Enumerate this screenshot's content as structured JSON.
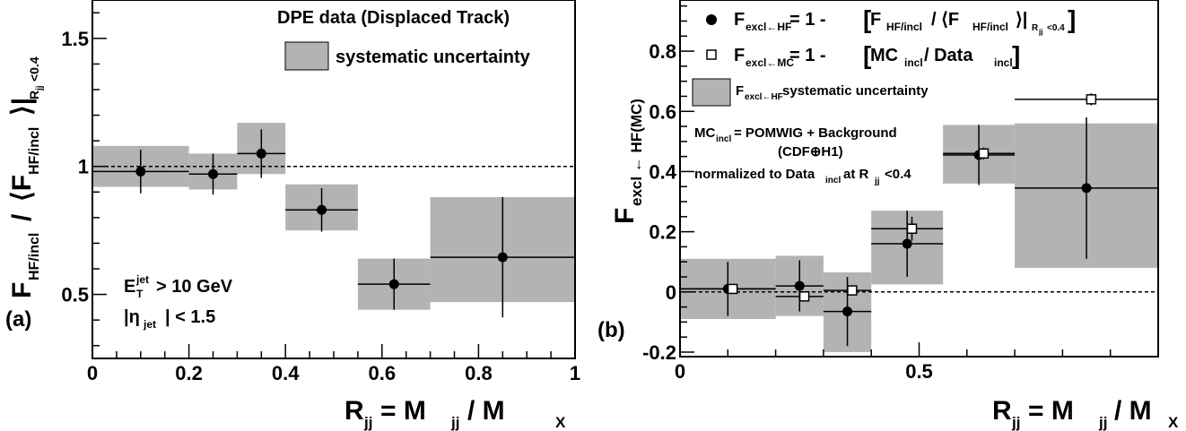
{
  "chart_data": [
    {
      "type": "scatter",
      "panel_label": "(a)",
      "x_bins": [
        [
          0,
          0.2
        ],
        [
          0.2,
          0.3
        ],
        [
          0.3,
          0.4
        ],
        [
          0.4,
          0.55
        ],
        [
          0.55,
          0.7
        ],
        [
          0.7,
          1.0
        ]
      ],
      "x": [
        0.1,
        0.25,
        0.35,
        0.475,
        0.625,
        0.85
      ],
      "y": [
        0.98,
        0.97,
        1.05,
        0.83,
        0.54,
        0.645
      ],
      "yerr_stat": [
        0.085,
        0.08,
        0.095,
        0.085,
        0.1,
        0.235
      ],
      "syst_band": [
        [
          0.92,
          1.08
        ],
        [
          0.91,
          1.05
        ],
        [
          0.97,
          1.17
        ],
        [
          0.75,
          0.93
        ],
        [
          0.44,
          0.64
        ],
        [
          0.47,
          0.88
        ]
      ],
      "xlim": [
        0,
        1
      ],
      "ylim": [
        0.25,
        1.65
      ],
      "reference_line_y": 1.0,
      "xticks": [
        "0",
        "0.2",
        "0.4",
        "0.6",
        "0.8",
        "1"
      ],
      "yticks": [
        "0.5",
        "1",
        "1.5"
      ],
      "xlabel": {
        "R": "R",
        "jj1": "jj",
        "eq": " = M",
        "jj2": "jj",
        "over": " / M",
        "X": "X"
      },
      "ylabel": {
        "F": "F",
        "sub": "HF/incl",
        "mid": " / ",
        "lang": "⟨F",
        "sub2": "HF/incl",
        "rang": "⟩|",
        "R": "R",
        "jj": "jj",
        "lt": "<0.4"
      },
      "legend": {
        "data": "DPE data (Displaced Track)",
        "syst": "systematic uncertainty"
      },
      "cuts": {
        "et": "E",
        "et_sup": "jet",
        "et_sub": "T",
        "et_val": " > 10 GeV",
        "eta_open": "|η",
        "eta_sub": "jet",
        "eta_val": "| < 1.5"
      },
      "colors": {
        "band": "#b3b3b3",
        "marker": "#000000"
      }
    },
    {
      "type": "scatter",
      "panel_label": "(b)",
      "x_bins": [
        [
          0,
          0.2
        ],
        [
          0.2,
          0.3
        ],
        [
          0.3,
          0.4
        ],
        [
          0.4,
          0.55
        ],
        [
          0.55,
          0.7
        ],
        [
          0.7,
          1.0
        ]
      ],
      "series": [
        {
          "name": "F_excl←HF",
          "marker": "filled-circle",
          "x": [
            0.1,
            0.25,
            0.35,
            0.475,
            0.625,
            0.85
          ],
          "y": [
            0.01,
            0.02,
            -0.065,
            0.16,
            0.455,
            0.345
          ],
          "yerr": [
            0.09,
            0.085,
            0.115,
            0.11,
            0.1,
            0.235
          ]
        },
        {
          "name": "F_excl←MC",
          "marker": "open-square",
          "x": [
            0.11,
            0.26,
            0.36,
            0.485,
            0.635,
            0.86
          ],
          "y": [
            0.01,
            -0.015,
            0.005,
            0.21,
            0.46,
            0.64
          ],
          "yerr": [
            0.015,
            0.015,
            0.015,
            0.04,
            0.02,
            0.02
          ]
        }
      ],
      "syst_band": [
        [
          -0.09,
          0.11
        ],
        [
          -0.08,
          0.12
        ],
        [
          -0.2,
          0.065
        ],
        [
          0.025,
          0.27
        ],
        [
          0.36,
          0.555
        ],
        [
          0.08,
          0.56
        ]
      ],
      "xlim": [
        0,
        1
      ],
      "ylim": [
        -0.215,
        0.97
      ],
      "reference_line_y": 0.0,
      "xticks": [
        "0",
        "0.5"
      ],
      "yticks": [
        "-0.2",
        "0",
        "0.2",
        "0.4",
        "0.6",
        "0.8"
      ],
      "xlabel": {
        "R": "R",
        "jj1": "jj",
        "eq": " = M",
        "jj2": "jj",
        "over": " / M",
        "X": "X"
      },
      "ylabel": {
        "F": "F",
        "sub": "excl ← HF(MC)"
      },
      "legend": {
        "hf": {
          "F": "F",
          "sub": "excl←HF",
          "eq": "  =  1 - ",
          "lb": "[",
          "F2": " F",
          "sub2": "HF/incl",
          "mid": " / ⟨F",
          "sub3": "HF/incl",
          "rang": "⟩|",
          "R": "R",
          "jj": "jj",
          "lt": "<0.4",
          "rb": " ]"
        },
        "mc": {
          "F": "F",
          "sub": "excl←MC",
          "eq": "  =  1 - ",
          "lb": "[",
          "mc": " MC",
          "mcsub": "incl",
          "mid": " / Data",
          "dsub": "incl",
          "rb": " ]"
        },
        "syst": {
          "F": "F",
          "sub": "excl←HF",
          "text": " systematic uncertainty"
        }
      },
      "note": {
        "l1a": "MC",
        "l1sub": "incl",
        "l1b": " = POMWIG + Background",
        "l2": "(CDF⊕H1)",
        "l3a": "normalized to Data",
        "l3sub": "incl",
        "l3b": " at R",
        "l3sub2": "jj",
        "l3c": "<0.4"
      },
      "colors": {
        "band": "#b3b3b3",
        "marker": "#000000"
      }
    }
  ]
}
